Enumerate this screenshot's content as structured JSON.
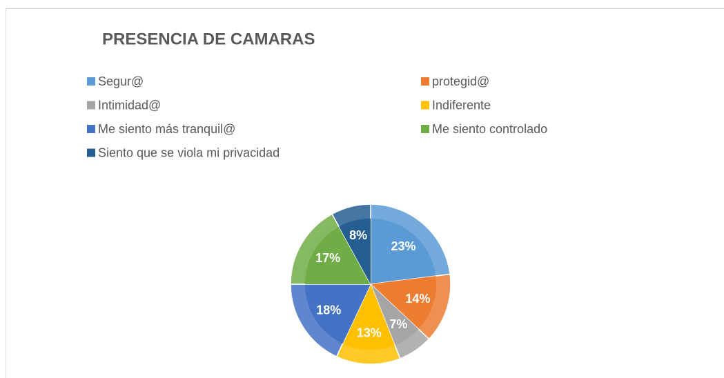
{
  "chart_data": {
    "type": "pie",
    "title": "PRESENCIA DE CAMARAS",
    "categories": [
      "Segur@",
      "protegid@",
      "Intimidad@",
      "Indiferente",
      "Me siento más tranquil@",
      "Me siento controlado",
      "Siento que se viola mi privacidad"
    ],
    "values": [
      23,
      14,
      7,
      13,
      18,
      17,
      8
    ],
    "value_labels": [
      "23%",
      "14%",
      "7%",
      "13%",
      "18%",
      "17%",
      "8%"
    ],
    "colors": [
      "#5b9bd5",
      "#ed7d31",
      "#a5a5a5",
      "#ffc000",
      "#4472c4",
      "#70ad47",
      "#255e91"
    ],
    "legend": "top"
  }
}
